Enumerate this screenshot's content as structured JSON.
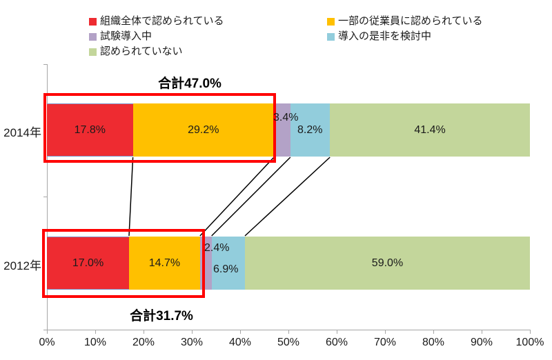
{
  "chart_data": {
    "type": "bar",
    "orientation": "horizontal",
    "stacked": true,
    "categories": [
      "2014年",
      "2012年"
    ],
    "series": [
      {
        "name": "組織全体で認められている",
        "color": "#ee2b31",
        "values": [
          17.8,
          17.0
        ]
      },
      {
        "name": "一部の従業員に認められている",
        "color": "#ffc000",
        "values": [
          29.2,
          14.7
        ]
      },
      {
        "name": "試験導入中",
        "color": "#b3a2c7",
        "values": [
          3.4,
          2.4
        ]
      },
      {
        "name": "導入の是非を検討中",
        "color": "#92cddc",
        "values": [
          8.2,
          6.9
        ]
      },
      {
        "name": "認められていない",
        "color": "#c3d69b",
        "values": [
          41.4,
          59.0
        ]
      }
    ],
    "value_labels": [
      [
        "17.8%",
        "29.2%",
        "3.4%",
        "8.2%",
        "41.4%"
      ],
      [
        "17.0%",
        "14.7%",
        "2.4%",
        "6.9%",
        "59.0%"
      ]
    ],
    "annotations": [
      {
        "text": "合計47.0%",
        "target": "2014年",
        "meaning": "sum of first two segments"
      },
      {
        "text": "合計31.7%",
        "target": "2012年",
        "meaning": "sum of first two segments"
      }
    ],
    "x_ticks": [
      "0%",
      "10%",
      "20%",
      "30%",
      "40%",
      "50%",
      "60%",
      "70%",
      "80%",
      "90%",
      "100%"
    ],
    "xlim": [
      0,
      100
    ],
    "legend_position": "top",
    "legend_columns": [
      [
        0,
        2,
        4
      ],
      [
        1,
        3
      ]
    ],
    "grid": false,
    "highlight_color": "#ff0000",
    "connector_color": "#000000",
    "axis_color": "#a6a6a6",
    "red_segment_border_color": "#7e8fc5"
  }
}
